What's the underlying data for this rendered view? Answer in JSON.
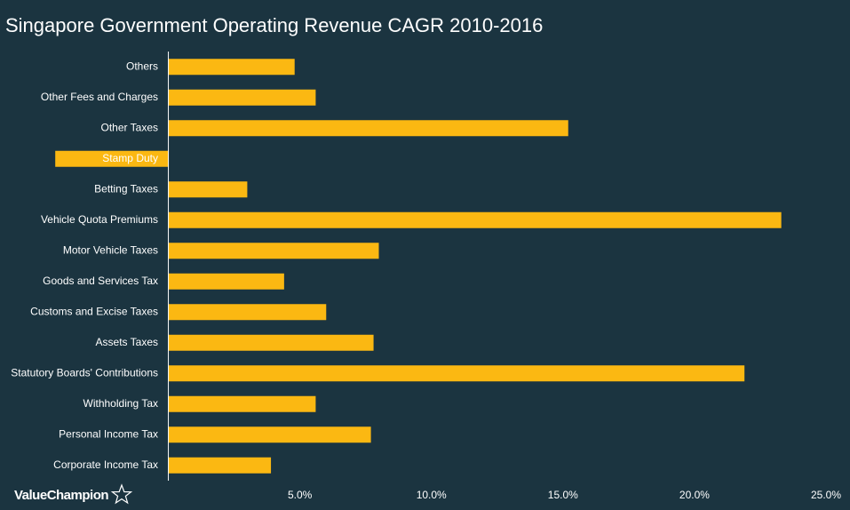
{
  "chart_data": {
    "type": "hbar",
    "title": "Singapore Government Operating Revenue CAGR 2010-2016",
    "categories": [
      "Others",
      "Other Fees and Charges",
      "Other Taxes",
      "Stamp Duty",
      "Betting Taxes",
      "Vehicle Quota Premiums",
      "Motor Vehicle Taxes",
      "Goods and Services Tax",
      "Customs and Excise Taxes",
      "Assets Taxes",
      "Statutory Boards' Contributions",
      "Withholding Tax",
      "Personal Income Tax",
      "Corporate Income Tax"
    ],
    "values": [
      4.8,
      5.6,
      15.2,
      -4.3,
      3.0,
      23.3,
      8.0,
      4.4,
      6.0,
      7.8,
      21.9,
      5.6,
      7.7,
      3.9
    ],
    "color": "#fbb812",
    "xlim": [
      -6.4,
      25
    ],
    "xticks": [
      {
        "value": 5,
        "label": "5.0%"
      },
      {
        "value": 10,
        "label": "10.0%"
      },
      {
        "value": 15,
        "label": "15.0%"
      },
      {
        "value": 20,
        "label": "20.0%"
      },
      {
        "value": 25,
        "label": "25.0%"
      }
    ],
    "grid": false,
    "branding": "ValueChampion"
  }
}
